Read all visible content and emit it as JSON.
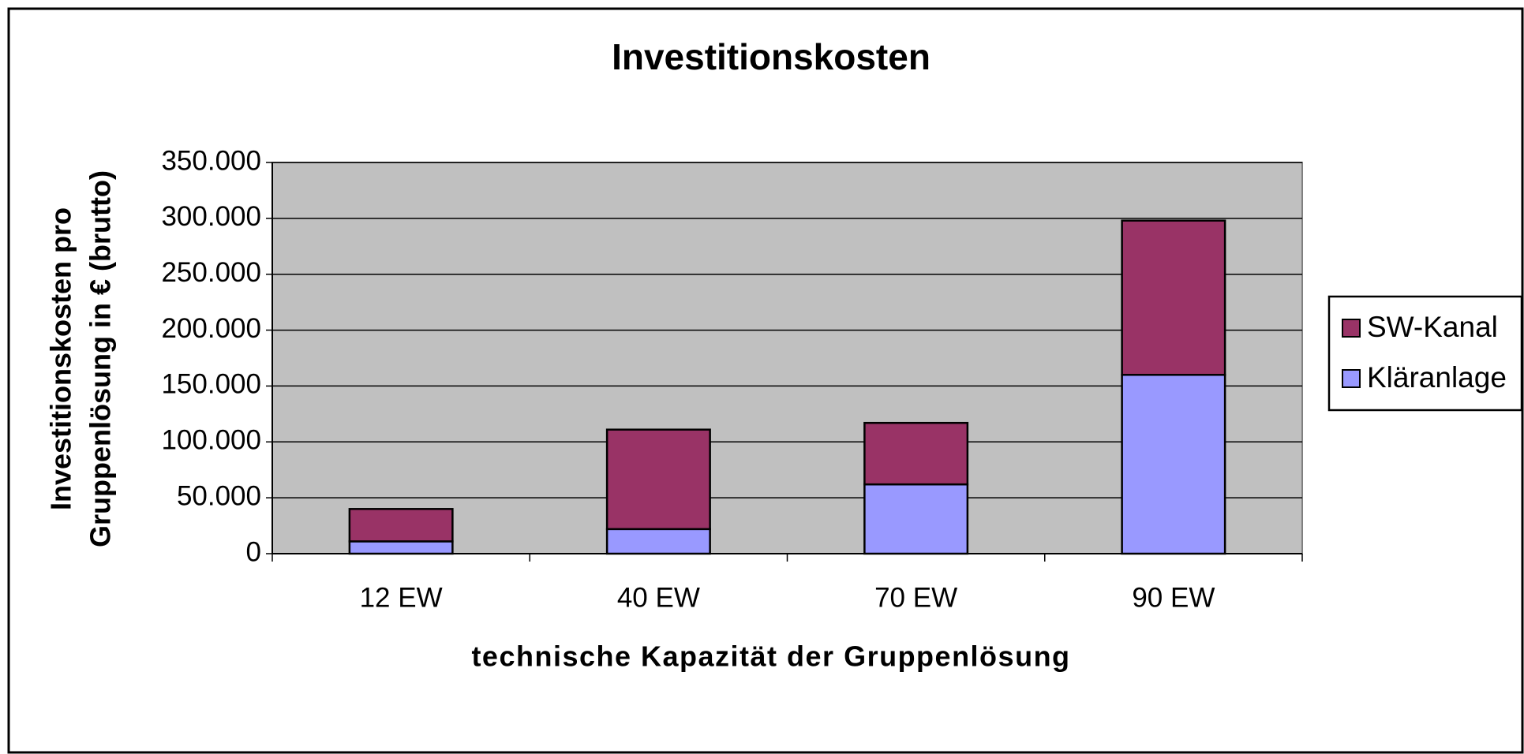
{
  "chart_data": {
    "type": "stacked_bar",
    "title": "Investitionskosten",
    "x_label": "technische Kapazität der Gruppenlösung",
    "y_label": [
      "Investitionskosten pro",
      "Gruppenlösung in € (brutto)"
    ],
    "categories": [
      "12 EW",
      "40 EW",
      "70 EW",
      "90 EW"
    ],
    "series": [
      {
        "name": "Kläranlage",
        "color": "#9999ff",
        "values": [
          11000,
          22000,
          62000,
          160000
        ]
      },
      {
        "name": "SW-Kanal",
        "color": "#993366",
        "values": [
          29000,
          89000,
          55000,
          138000
        ]
      }
    ],
    "ylim": [
      0,
      350000
    ],
    "yticks": [
      0,
      {
        "value": 50000,
        "label": "50.000"
      },
      {
        "value": 100000,
        "label": "100.000"
      },
      {
        "value": 150000,
        "label": "150.000"
      },
      {
        "value": 200000,
        "label": "200.000"
      },
      {
        "value": 250000,
        "label": "250.000"
      },
      {
        "value": 300000,
        "label": "300.000"
      },
      {
        "value": 350000,
        "label": "350.000"
      }
    ],
    "grid": true,
    "plot_background": "#c0c0c0",
    "legend": "right"
  }
}
